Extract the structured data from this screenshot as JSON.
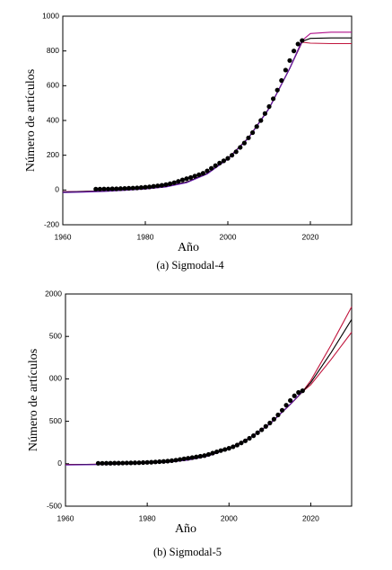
{
  "chart_data": [
    {
      "type": "scatter",
      "caption": "(a)  Sigmodal-4",
      "xlabel": "Año",
      "ylabel": "Número de artículos",
      "xlim": [
        1960,
        2030
      ],
      "xticks": [
        1960,
        1980,
        2000,
        2020
      ],
      "ylim": [
        -200,
        1000
      ],
      "yticks": [
        -200,
        0,
        200,
        400,
        600,
        800,
        1000
      ],
      "series": [
        {
          "style": "line",
          "color": "#c0143c",
          "x": [
            1960,
            1965,
            1970,
            1975,
            1980,
            1985,
            1990,
            1995,
            2000,
            2005,
            2010,
            2015,
            2018,
            2020,
            2025,
            2030
          ],
          "values": [
            -10,
            -8,
            -5,
            0,
            8,
            20,
            45,
            95,
            180,
            300,
            470,
            700,
            850,
            845,
            842,
            842
          ]
        },
        {
          "style": "line",
          "color": "#b0108a",
          "x": [
            1960,
            1965,
            1970,
            1975,
            1980,
            1985,
            1990,
            1995,
            2000,
            2005,
            2010,
            2015,
            2018,
            2020,
            2025,
            2030
          ],
          "values": [
            -10,
            -8,
            -5,
            0,
            8,
            20,
            45,
            95,
            180,
            300,
            470,
            700,
            860,
            900,
            908,
            908
          ]
        },
        {
          "style": "line",
          "color": "#000000",
          "x": [
            1960,
            1965,
            1970,
            1975,
            1980,
            1985,
            1990,
            1995,
            2000,
            2005,
            2010,
            2015,
            2018,
            2020,
            2025,
            2030
          ],
          "values": [
            -12,
            -9,
            -6,
            0,
            8,
            20,
            45,
            95,
            180,
            300,
            470,
            700,
            855,
            872,
            875,
            875
          ]
        },
        {
          "style": "line",
          "color": "#6a1bb0",
          "x": [
            1960,
            1965,
            1970,
            1975,
            1980,
            1985,
            1990,
            1995,
            2000,
            2005,
            2010,
            2015,
            2018
          ],
          "values": [
            -15,
            -12,
            -8,
            -2,
            6,
            18,
            42,
            92,
            178,
            298,
            468,
            700,
            855
          ]
        },
        {
          "style": "points",
          "color": "#000000",
          "x": [
            1968,
            1969,
            1970,
            1971,
            1972,
            1973,
            1974,
            1975,
            1976,
            1977,
            1978,
            1979,
            1980,
            1981,
            1982,
            1983,
            1984,
            1985,
            1986,
            1987,
            1988,
            1989,
            1990,
            1991,
            1992,
            1993,
            1994,
            1995,
            1996,
            1997,
            1998,
            1999,
            2000,
            2001,
            2002,
            2003,
            2004,
            2005,
            2006,
            2007,
            2008,
            2009,
            2010,
            2011,
            2012,
            2013,
            2014,
            2015,
            2016,
            2017,
            2018
          ],
          "values": [
            5,
            5,
            6,
            6,
            7,
            7,
            8,
            9,
            10,
            11,
            12,
            14,
            16,
            18,
            21,
            24,
            27,
            31,
            36,
            42,
            50,
            58,
            65,
            72,
            80,
            88,
            96,
            110,
            125,
            140,
            155,
            168,
            182,
            200,
            220,
            245,
            270,
            300,
            330,
            365,
            400,
            440,
            480,
            525,
            575,
            630,
            690,
            745,
            800,
            840,
            860
          ]
        }
      ]
    },
    {
      "type": "scatter",
      "caption": "(b)  Sigmodal-5",
      "xlabel": "Año",
      "ylabel": "Número de artículos",
      "xlim": [
        1960,
        2030
      ],
      "xticks": [
        1960,
        1980,
        2000,
        2020
      ],
      "ylim": [
        -500,
        2000
      ],
      "yticks": [
        -500,
        0,
        500,
        {
          "value": 1000,
          "label": "000"
        },
        {
          "value": 1500,
          "label": "500"
        },
        2000
      ],
      "series": [
        {
          "style": "line",
          "color": "#c0143c",
          "x": [
            1960,
            1965,
            1970,
            1975,
            1980,
            1985,
            1990,
            1995,
            2000,
            2005,
            2010,
            2015,
            2018,
            2020,
            2025,
            2030
          ],
          "values": [
            -10,
            -8,
            -5,
            0,
            8,
            20,
            45,
            95,
            180,
            300,
            470,
            700,
            850,
            980,
            1400,
            1850
          ]
        },
        {
          "style": "line",
          "color": "#c0143c",
          "x": [
            1960,
            1965,
            1970,
            1975,
            1980,
            1985,
            1990,
            1995,
            2000,
            2005,
            2010,
            2015,
            2018,
            2020,
            2025,
            2030
          ],
          "values": [
            -10,
            -8,
            -5,
            0,
            8,
            20,
            45,
            95,
            180,
            300,
            470,
            700,
            850,
            930,
            1230,
            1550
          ]
        },
        {
          "style": "line",
          "color": "#000000",
          "x": [
            1960,
            1965,
            1970,
            1975,
            1980,
            1985,
            1990,
            1995,
            2000,
            2005,
            2010,
            2015,
            2018,
            2020,
            2025,
            2030
          ],
          "values": [
            -12,
            -9,
            -6,
            0,
            8,
            20,
            45,
            95,
            180,
            300,
            470,
            700,
            850,
            955,
            1310,
            1700
          ]
        },
        {
          "style": "line",
          "color": "#6a1bb0",
          "x": [
            1960,
            1965,
            1970,
            1975,
            1980,
            1985,
            1990,
            1995,
            2000,
            2005,
            2010,
            2015,
            2018
          ],
          "values": [
            -15,
            -12,
            -8,
            -2,
            6,
            18,
            42,
            92,
            178,
            298,
            468,
            700,
            855
          ]
        },
        {
          "style": "points",
          "color": "#000000",
          "x": [
            1968,
            1969,
            1970,
            1971,
            1972,
            1973,
            1974,
            1975,
            1976,
            1977,
            1978,
            1979,
            1980,
            1981,
            1982,
            1983,
            1984,
            1985,
            1986,
            1987,
            1988,
            1989,
            1990,
            1991,
            1992,
            1993,
            1994,
            1995,
            1996,
            1997,
            1998,
            1999,
            2000,
            2001,
            2002,
            2003,
            2004,
            2005,
            2006,
            2007,
            2008,
            2009,
            2010,
            2011,
            2012,
            2013,
            2014,
            2015,
            2016,
            2017,
            2018
          ],
          "values": [
            5,
            5,
            6,
            6,
            7,
            7,
            8,
            9,
            10,
            11,
            12,
            14,
            16,
            18,
            21,
            24,
            27,
            31,
            36,
            42,
            50,
            58,
            65,
            72,
            80,
            88,
            96,
            110,
            125,
            140,
            155,
            168,
            182,
            200,
            220,
            245,
            270,
            300,
            330,
            365,
            400,
            440,
            480,
            525,
            575,
            630,
            690,
            745,
            800,
            840,
            860
          ]
        }
      ]
    }
  ]
}
